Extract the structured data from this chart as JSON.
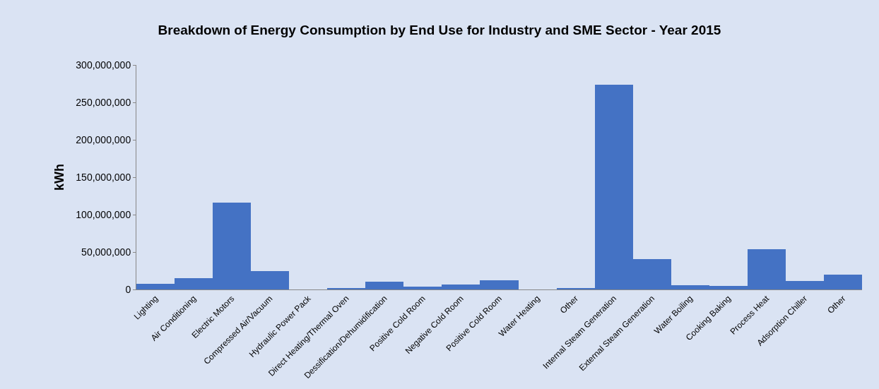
{
  "chart_data": {
    "type": "bar",
    "title": "Breakdown of Energy Consumption by End Use for Industry and SME Sector - Year 2015",
    "ylabel": "kWh",
    "categories": [
      "Lighting",
      "Air Conditioning",
      "Electric Motors",
      "Compressed Air/Vacuum",
      "Hydraulic Power Pack",
      "Direct Heating/Thermal Oven",
      "Dessification/Dehumidification",
      "Positive Cold Room",
      "Negative Cold Room",
      "Positive Cold Room",
      "Water Heating",
      "Other",
      "Internal Steam Generation",
      "External Steam Generation",
      "Water Boiling",
      "Cooking Baking",
      "Process Heat",
      "Adsorption Chiller",
      "Other"
    ],
    "values": [
      8000000,
      15000000,
      116000000,
      25000000,
      0,
      2000000,
      10000000,
      4000000,
      7000000,
      12000000,
      0,
      1000000,
      274000000,
      41000000,
      6000000,
      5000000,
      54000000,
      11000000,
      20000000
    ],
    "color": "#4472c4",
    "ylim": [
      0,
      300000000
    ],
    "yticks": [
      {
        "value": 0,
        "label": "0"
      },
      {
        "value": 50000000,
        "label": "50,000,000"
      },
      {
        "value": 100000000,
        "label": "100,000,000"
      },
      {
        "value": 150000000,
        "label": "150,000,000"
      },
      {
        "value": 200000000,
        "label": "200,000,000"
      },
      {
        "value": 250000000,
        "label": "250,000,000"
      },
      {
        "value": 300000000,
        "label": "300,000,000"
      }
    ],
    "grid": false,
    "legend": false
  }
}
